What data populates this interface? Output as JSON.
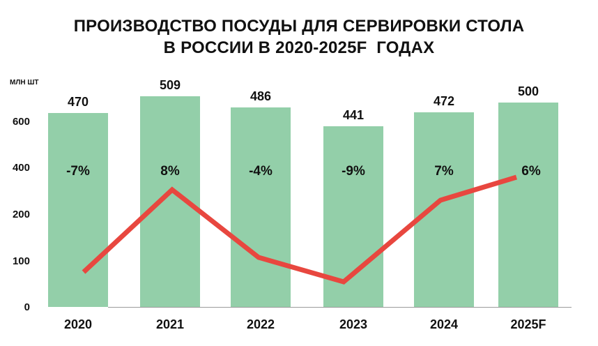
{
  "chart_data": {
    "type": "bar",
    "title_lines": [
      "ПРОИЗВОДСТВО ПОСУДЫ ДЛЯ СЕРВИРОВКИ СТОЛА",
      "В РОССИИ В 2020-2025F  ГОДАХ"
    ],
    "unit_label": "МЛН ШТ",
    "categories": [
      "2020",
      "2021",
      "2022",
      "2023",
      "2024",
      "2025F"
    ],
    "y_ticks": [
      "0",
      "100",
      "200",
      "400",
      "600"
    ],
    "series": [
      {
        "kind": "bar",
        "values": [
          470,
          509,
          486,
          441,
          472,
          500
        ],
        "value_labels": [
          "470",
          "509",
          "486",
          "441",
          "472",
          "500"
        ],
        "color": "#93cfa9"
      },
      {
        "kind": "line",
        "values": [
          -7,
          8,
          -4,
          -9,
          7,
          6
        ],
        "value_labels": [
          "-7%",
          "8%",
          "-4%",
          "-9%",
          "7%",
          "6%"
        ],
        "color": "#e8473f"
      }
    ],
    "grid": false
  }
}
